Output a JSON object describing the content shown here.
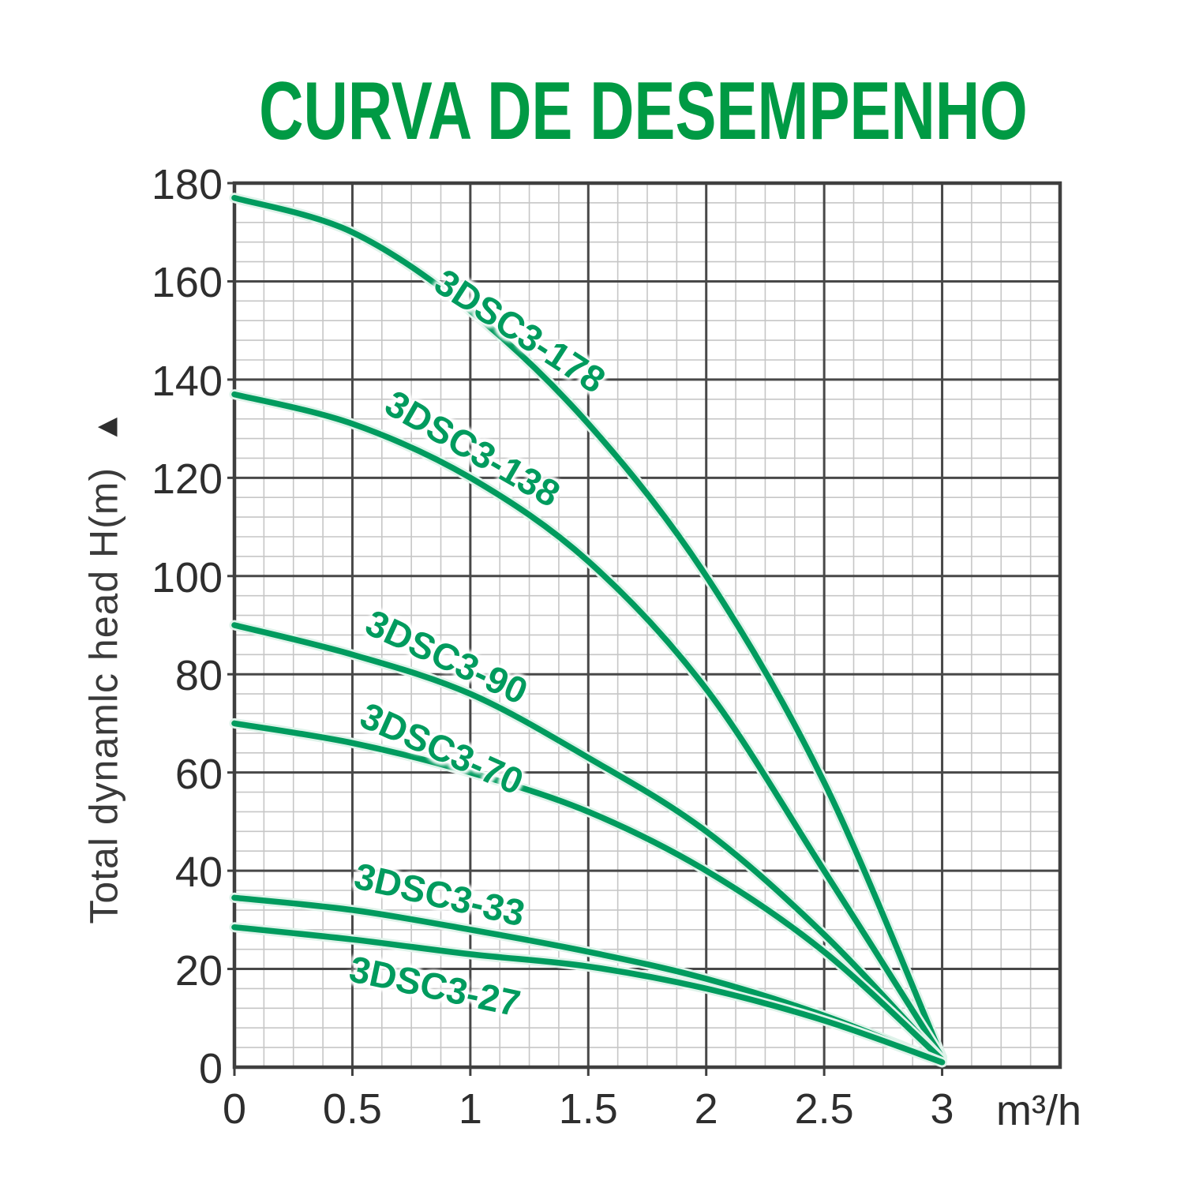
{
  "title": "CURVA DE DESEMPENHO",
  "x_axis": {
    "unit": "m³/h",
    "tick_labels": [
      "0",
      "0.5",
      "1",
      "1.5",
      "2",
      "2.5",
      "3"
    ],
    "tick_values": [
      0,
      0.5,
      1,
      1.5,
      2,
      2.5,
      3
    ],
    "min": 0,
    "max": 3.5,
    "major_step": 0.5,
    "minor_per_major": 4
  },
  "y_axis": {
    "label": "Total dynamlc head H(m)",
    "arrow": "▲",
    "tick_labels": [
      "0",
      "20",
      "40",
      "60",
      "80",
      "100",
      "120",
      "140",
      "160",
      "180"
    ],
    "tick_values": [
      0,
      20,
      40,
      60,
      80,
      100,
      120,
      140,
      160,
      180
    ],
    "min": 0,
    "max": 180,
    "major_step": 20,
    "minor_per_major": 5
  },
  "chart_data": {
    "type": "line",
    "title": "CURVA DE DESEMPENHO",
    "xlabel": "m³/h",
    "ylabel": "Total dynamlc head H(m)",
    "xlim": [
      0,
      3.5
    ],
    "ylim": [
      0,
      180
    ],
    "grid": true,
    "legend": "labels-on-curves",
    "x": [
      0,
      0.5,
      1,
      1.5,
      2,
      2.5,
      3
    ],
    "series": [
      {
        "name": "3DSC3-178",
        "values": [
          177,
          170,
          154,
          131,
          100,
          58,
          2
        ],
        "label_anchor": {
          "x": 1.21,
          "y": 150,
          "angle": 33
        }
      },
      {
        "name": "3DSC3-138",
        "values": [
          137,
          131,
          120,
          103,
          77,
          40,
          2
        ],
        "label_anchor": {
          "x": 1.01,
          "y": 126,
          "angle": 30
        }
      },
      {
        "name": "3DSC3-90",
        "values": [
          90,
          84,
          76,
          63,
          48,
          27,
          1.5
        ],
        "label_anchor": {
          "x": 0.9,
          "y": 83.5,
          "angle": 25
        }
      },
      {
        "name": "3DSC3-70",
        "values": [
          70,
          66,
          60,
          52,
          40,
          23.5,
          1.5
        ],
        "label_anchor": {
          "x": 0.88,
          "y": 65,
          "angle": 24
        }
      },
      {
        "name": "3DSC3-33",
        "values": [
          34.5,
          32,
          28,
          23.5,
          18,
          10.5,
          1
        ],
        "label_anchor": {
          "x": 0.87,
          "y": 35.2,
          "angle": 13
        }
      },
      {
        "name": "3DSC3-27",
        "values": [
          28.5,
          26,
          23,
          20.5,
          16,
          9.5,
          1
        ],
        "label_anchor": {
          "x": 0.85,
          "y": 16.6,
          "angle": 12
        }
      }
    ]
  },
  "colors": {
    "title": "#009a44",
    "curve": "#009b5e",
    "curve_label": "#009b5e",
    "axis_text": "#2e2e2e",
    "grid_major": "#484848",
    "grid_minor": "#c6c6c6",
    "background": "#ffffff"
  }
}
